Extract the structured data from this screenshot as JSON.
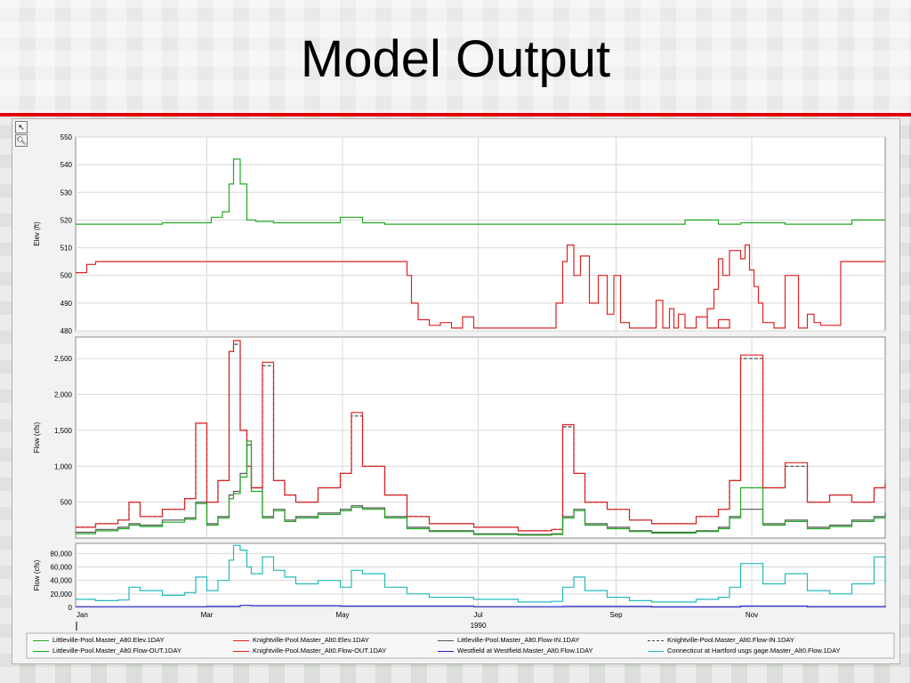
{
  "slide": {
    "title": "Model Output"
  },
  "toolbar": {
    "pointer_icon": "pointer-icon",
    "zoom_icon": "zoom-icon"
  },
  "chart_data": [
    {
      "type": "line",
      "ylabel": "Elev (ft)",
      "ylim": [
        480,
        550
      ],
      "yticks": [
        480,
        490,
        500,
        510,
        520,
        530,
        540,
        550
      ],
      "grid": true,
      "series": [
        {
          "name": "Littleville-Pool.Master_Alt0.Elev.1DAY",
          "color": "#22aa22",
          "x": [
            1,
            20,
            40,
            55,
            62,
            67,
            70,
            72,
            75,
            78,
            82,
            90,
            105,
            120,
            130,
            140,
            160,
            180,
            200,
            210,
            220,
            240,
            255,
            262,
            268,
            275,
            290,
            300,
            310,
            320,
            340,
            350,
            365
          ],
          "y": [
            518.5,
            518.5,
            519,
            519,
            521,
            523,
            533,
            542,
            533,
            520,
            519.5,
            519,
            519,
            521,
            519,
            518.5,
            518.5,
            518.5,
            518.5,
            518.5,
            518.5,
            518.5,
            518.5,
            518.5,
            518.5,
            520,
            518.5,
            519,
            519,
            518.5,
            518.5,
            520,
            520
          ]
        },
        {
          "name": "Knightville-Pool.Master_Alt0.Elev.1DAY",
          "color": "#dd2222",
          "x": [
            1,
            3,
            6,
            10,
            60,
            100,
            148,
            150,
            152,
            155,
            160,
            165,
            170,
            175,
            180,
            190,
            200,
            215,
            217,
            220,
            222,
            225,
            228,
            232,
            236,
            240,
            243,
            246,
            250,
            260,
            262,
            265,
            268,
            270,
            272,
            275,
            280,
            285,
            290,
            295,
            285,
            288,
            290,
            292,
            295,
            300,
            302,
            304,
            306,
            308,
            310,
            315,
            320,
            326,
            330,
            333,
            336,
            345,
            365
          ],
          "y": [
            501,
            501,
            504,
            505,
            505,
            505,
            505,
            500,
            490,
            484,
            482,
            483,
            481,
            485,
            481,
            481,
            481,
            481,
            490,
            505,
            511,
            500,
            507,
            490,
            500,
            486,
            500,
            483,
            481,
            481,
            491,
            481,
            488,
            481,
            486,
            481,
            485,
            481,
            484,
            481,
            488,
            495,
            506,
            500,
            509,
            506,
            511,
            502,
            496,
            490,
            483,
            481,
            500,
            481,
            486,
            483,
            482,
            505,
            505
          ]
        }
      ]
    },
    {
      "type": "line",
      "ylabel": "Flow (cfs)",
      "ylim": [
        0,
        2800
      ],
      "yticks": [
        500,
        1000,
        1500,
        2000,
        2500
      ],
      "grid": true,
      "series": [
        {
          "name": "Littleville-Pool.Master_Alt0.Flow-IN.1DAY",
          "color": "#555555",
          "dash": "",
          "x": [
            1,
            10,
            20,
            25,
            30,
            40,
            50,
            55,
            60,
            65,
            70,
            72,
            75,
            78,
            80,
            85,
            90,
            95,
            100,
            110,
            120,
            125,
            130,
            140,
            150,
            160,
            180,
            200,
            215,
            220,
            225,
            230,
            240,
            250,
            260,
            280,
            290,
            295,
            300,
            310,
            320,
            330,
            340,
            350,
            360,
            365
          ],
          "y": [
            80,
            120,
            150,
            200,
            180,
            250,
            280,
            500,
            200,
            300,
            600,
            650,
            900,
            1300,
            700,
            300,
            400,
            250,
            300,
            350,
            400,
            450,
            420,
            300,
            150,
            100,
            60,
            50,
            60,
            300,
            400,
            200,
            150,
            100,
            80,
            100,
            150,
            300,
            400,
            200,
            250,
            150,
            180,
            250,
            300,
            350
          ]
        },
        {
          "name": "Knightville-Pool.Master_Alt0.Flow-IN.1DAY",
          "color": "#444444",
          "dash": "4,2",
          "x": [
            1,
            10,
            20,
            25,
            30,
            40,
            50,
            55,
            60,
            65,
            70,
            72,
            75,
            78,
            80,
            85,
            90,
            95,
            100,
            110,
            120,
            125,
            130,
            140,
            150,
            160,
            180,
            200,
            215,
            220,
            225,
            230,
            240,
            250,
            260,
            280,
            290,
            295,
            300,
            310,
            320,
            330,
            340,
            350,
            360,
            365
          ],
          "y": [
            150,
            200,
            250,
            500,
            300,
            400,
            550,
            1600,
            500,
            800,
            2600,
            2700,
            1500,
            1000,
            700,
            2400,
            800,
            600,
            500,
            700,
            900,
            1700,
            1000,
            600,
            300,
            200,
            150,
            100,
            120,
            1550,
            900,
            500,
            400,
            250,
            200,
            300,
            400,
            800,
            2500,
            700,
            1000,
            500,
            600,
            500,
            700,
            800
          ]
        },
        {
          "name": "Knightville-Pool.Master_Alt0.Flow-OUT.1DAY",
          "color": "#dd2222",
          "dash": "",
          "x": [
            1,
            10,
            20,
            25,
            30,
            40,
            50,
            55,
            60,
            65,
            70,
            72,
            75,
            78,
            80,
            85,
            90,
            95,
            100,
            110,
            120,
            125,
            130,
            140,
            150,
            160,
            180,
            200,
            215,
            220,
            225,
            230,
            240,
            250,
            260,
            280,
            290,
            295,
            300,
            310,
            320,
            330,
            340,
            350,
            360,
            365
          ],
          "y": [
            150,
            200,
            250,
            500,
            300,
            400,
            550,
            1600,
            500,
            800,
            2600,
            2750,
            1500,
            1000,
            700,
            2450,
            800,
            600,
            500,
            700,
            900,
            1750,
            1000,
            600,
            300,
            200,
            150,
            100,
            120,
            1580,
            900,
            500,
            400,
            250,
            200,
            300,
            400,
            800,
            2550,
            700,
            1050,
            500,
            600,
            500,
            700,
            750
          ]
        },
        {
          "name": "Littleville-Pool.Master_Alt0.Flow-OUT.1DAY",
          "color": "#22aa22",
          "dash": "",
          "x": [
            1,
            10,
            20,
            25,
            30,
            40,
            50,
            55,
            60,
            65,
            70,
            72,
            75,
            78,
            80,
            85,
            90,
            95,
            100,
            110,
            120,
            125,
            130,
            140,
            150,
            160,
            180,
            200,
            215,
            220,
            225,
            230,
            240,
            250,
            260,
            280,
            290,
            295,
            300,
            310,
            320,
            330,
            340,
            350,
            360,
            365
          ],
          "y": [
            60,
            100,
            130,
            180,
            160,
            220,
            260,
            480,
            180,
            280,
            550,
            620,
            850,
            1350,
            650,
            280,
            380,
            230,
            280,
            330,
            380,
            430,
            400,
            280,
            130,
            90,
            50,
            40,
            50,
            280,
            380,
            180,
            130,
            90,
            70,
            90,
            130,
            280,
            700,
            180,
            230,
            130,
            160,
            230,
            280,
            320
          ]
        }
      ]
    },
    {
      "type": "line",
      "ylabel": "Flow (cfs)",
      "xlabel": "1990",
      "ylim": [
        0,
        95000
      ],
      "yticks": [
        0,
        20000,
        40000,
        60000,
        80000
      ],
      "ytick_labels": [
        "0",
        "20,000",
        "40,000",
        "60,000",
        "80,000"
      ],
      "xticks": [
        "Jan",
        "Mar",
        "May",
        "Jul",
        "Sep",
        "Nov"
      ],
      "xtick_days": [
        1,
        60,
        121,
        182,
        244,
        305
      ],
      "grid": true,
      "series": [
        {
          "name": "Westfield at Westfield.Master_Alt0.Flow.1DAY",
          "color": "#2222cc",
          "x": [
            1,
            60,
            75,
            80,
            120,
            180,
            220,
            260,
            300,
            330,
            365
          ],
          "y": [
            1000,
            1500,
            3000,
            2500,
            2000,
            1000,
            1500,
            800,
            2000,
            1200,
            2500
          ]
        },
        {
          "name": "Connecticut at Hartford usgs gage.Master_Alt0.Flow.1DAY",
          "color": "#22bbbb",
          "x": [
            1,
            10,
            20,
            25,
            30,
            40,
            50,
            55,
            60,
            65,
            70,
            72,
            75,
            78,
            80,
            85,
            90,
            95,
            100,
            110,
            120,
            125,
            130,
            140,
            150,
            160,
            180,
            200,
            215,
            220,
            225,
            230,
            240,
            250,
            260,
            280,
            290,
            295,
            300,
            310,
            320,
            330,
            340,
            350,
            360,
            365
          ],
          "y": [
            12000,
            10000,
            11000,
            30000,
            25000,
            18000,
            22000,
            45000,
            25000,
            40000,
            70000,
            92000,
            85000,
            60000,
            50000,
            75000,
            55000,
            45000,
            35000,
            40000,
            30000,
            55000,
            50000,
            30000,
            20000,
            15000,
            12000,
            8000,
            9000,
            30000,
            45000,
            25000,
            15000,
            10000,
            8000,
            12000,
            15000,
            30000,
            65000,
            35000,
            50000,
            25000,
            20000,
            35000,
            75000,
            35000
          ]
        }
      ]
    }
  ],
  "legend": [
    {
      "label": "Littleville-Pool.Master_Alt0.Elev.1DAY",
      "color": "#22aa22",
      "dash": ""
    },
    {
      "label": "Knightville-Pool.Master_Alt0.Elev.1DAY",
      "color": "#dd2222",
      "dash": ""
    },
    {
      "label": "Littleville-Pool.Master_Alt0.Flow-IN.1DAY",
      "color": "#555555",
      "dash": ""
    },
    {
      "label": "Knightville-Pool.Master_Alt0.Flow-IN.1DAY",
      "color": "#444444",
      "dash": "4,2"
    },
    {
      "label": "Littleville-Pool.Master_Alt0.Flow-OUT.1DAY",
      "color": "#22aa22",
      "dash": ""
    },
    {
      "label": "Knightville-Pool.Master_Alt0.Flow-OUT.1DAY",
      "color": "#dd2222",
      "dash": ""
    },
    {
      "label": "Westfield at Westfield.Master_Alt0.Flow.1DAY",
      "color": "#2222cc",
      "dash": ""
    },
    {
      "label": "Connecticut at Hartford usgs gage.Master_Alt0.Flow.1DAY",
      "color": "#22bbbb",
      "dash": ""
    }
  ]
}
